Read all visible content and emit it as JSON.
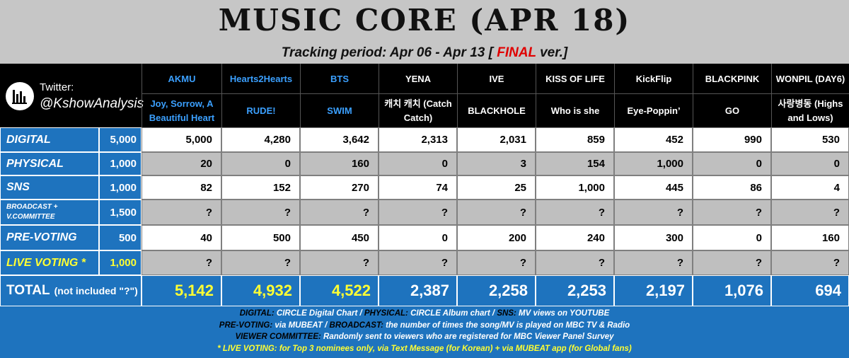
{
  "header": {
    "title": "MUSIC CORE (APR 18)",
    "subtitle": "Tracking period: Apr 06 - Apr 13",
    "bracket": "[",
    "final": "FINAL",
    "version": "ver.]"
  },
  "brand": {
    "twitter": "Twitter:",
    "handle": "@KshowAnalysis"
  },
  "table": {
    "columns": [
      {
        "artist": "AKMU",
        "song": "Joy, Sorrow, A Beautiful Heart"
      },
      {
        "artist": "Hearts2Hearts",
        "song": "RUDE!"
      },
      {
        "artist": "BTS",
        "song": "SWIM"
      },
      {
        "artist": "YENA",
        "song": "캐치 캐치 (Catch Catch)"
      },
      {
        "artist": "IVE",
        "song": "BLACKHOLE"
      },
      {
        "artist": "KISS OF LIFE",
        "song": "Who is she"
      },
      {
        "artist": "KickFlip",
        "song": "Eye-Poppin’"
      },
      {
        "artist": "BLACKPINK",
        "song": "GO"
      },
      {
        "artist": "WONPIL (DAY6)",
        "song": "사랑병동 (Highs and Lows)"
      }
    ],
    "rows": [
      {
        "label": "DIGITAL",
        "weight": "5,000",
        "values": [
          "5,000",
          "4,280",
          "3,642",
          "2,313",
          "2,031",
          "859",
          "452",
          "990",
          "530"
        ]
      },
      {
        "label": "PHYSICAL",
        "weight": "1,000",
        "values": [
          "20",
          "0",
          "160",
          "0",
          "3",
          "154",
          "1,000",
          "0",
          "0"
        ]
      },
      {
        "label": "SNS",
        "weight": "1,000",
        "values": [
          "82",
          "152",
          "270",
          "74",
          "25",
          "1,000",
          "445",
          "86",
          "4"
        ]
      },
      {
        "label": "BROADCAST + V.COMMITTEE",
        "weight": "1,500",
        "values": [
          "?",
          "?",
          "?",
          "?",
          "?",
          "?",
          "?",
          "?",
          "?"
        ]
      },
      {
        "label": "PRE-VOTING",
        "weight": "500",
        "values": [
          "40",
          "500",
          "450",
          "0",
          "200",
          "240",
          "300",
          "0",
          "160"
        ]
      },
      {
        "label": "LIVE VOTING *",
        "weight": "1,000",
        "values": [
          "?",
          "?",
          "?",
          "?",
          "?",
          "?",
          "?",
          "?",
          "?"
        ]
      }
    ],
    "total": {
      "label": "TOTAL",
      "note": "(not included \"?\")",
      "values": [
        "5,142",
        "4,932",
        "4,522",
        "2,387",
        "2,258",
        "2,253",
        "2,197",
        "1,076",
        "694"
      ]
    }
  },
  "footer": [
    [
      "DIGITAL:",
      "CIRCLE Digital Chart /",
      "PHYSICAL:",
      "CIRCLE Album chart /",
      "SNS:",
      "MV views on YOUTUBE"
    ],
    [
      "PRE-VOTING:",
      "via MUBEAT /",
      "BROADCAST:",
      "the number of times the song/MV is played on MBC TV & Radio"
    ],
    [
      "VIEWER COMMITTEE:",
      "Randomly sent to viewers who are registered for MBC Viewer Panel Survey"
    ],
    [
      "* LIVE VOTING:",
      "for Top 3 nominees only,",
      "via Text Message (for Korean) + via MUBEAT app (for Global fans)"
    ]
  ]
}
